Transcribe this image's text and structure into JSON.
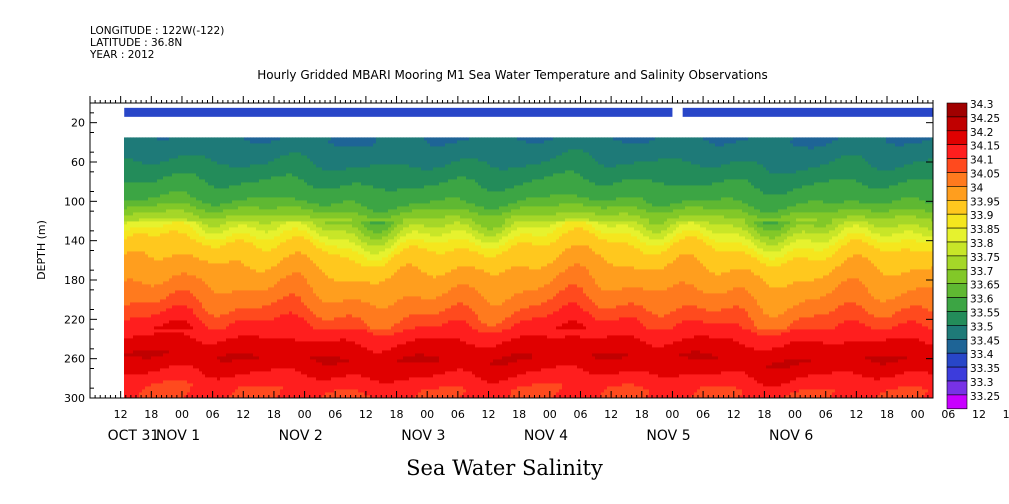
{
  "header": {
    "longitude": "LONGITUDE : 122W(-122)",
    "latitude": "LATITUDE : 36.8N",
    "year": "YEAR : 2012"
  },
  "chart_data": {
    "type": "heatmap",
    "title": "Hourly Gridded MBARI Mooring M1 Sea Water Temperature and Salinity Observations",
    "bottom_title": "Sea Water Salinity",
    "ylabel": "DEPTH (m)",
    "ylim": [
      300,
      0
    ],
    "y_ticks": [
      "20",
      "60",
      "100",
      "140",
      "180",
      "220",
      "260",
      "300"
    ],
    "y_tick_values": [
      20,
      60,
      100,
      140,
      180,
      220,
      260,
      300
    ],
    "x_hour_labels": [
      "12",
      "18",
      "00",
      "06",
      "12",
      "18",
      "00",
      "06",
      "12",
      "18",
      "00",
      "06",
      "12",
      "18",
      "00",
      "06",
      "12",
      "18",
      "00",
      "06",
      "12",
      "18",
      "00",
      "06",
      "12",
      "18",
      "00",
      "06",
      "12",
      "18",
      "00"
    ],
    "x_day_labels": [
      "OCT 31",
      "NOV  1",
      "NOV  2",
      "NOV  3",
      "NOV  4",
      "NOV  5",
      "NOV  6"
    ],
    "x_range_hours": [
      "2012-10-31 06:00",
      "2012-11-07 03:00"
    ],
    "colorbar_levels": [
      "34.3",
      "34.25",
      "34.2",
      "34.15",
      "34.1",
      "34.05",
      "34",
      "33.95",
      "33.9",
      "33.85",
      "33.8",
      "33.75",
      "33.7",
      "33.65",
      "33.6",
      "33.55",
      "33.5",
      "33.45",
      "33.4",
      "33.35",
      "33.3",
      "33.25"
    ],
    "colorbar_colors": [
      "#a00000",
      "#c00000",
      "#e00000",
      "#ff1e1e",
      "#ff4a1e",
      "#ff7a1e",
      "#ff9e1e",
      "#ffc81e",
      "#f5e61e",
      "#e6f22e",
      "#c8e628",
      "#a5d728",
      "#82c828",
      "#5fb832",
      "#3ca544",
      "#238c5a",
      "#1e7a78",
      "#1e6496",
      "#2846c8",
      "#3c3cdc",
      "#7832e6",
      "#c800ff"
    ],
    "surface_sensor": {
      "depth_m": 10,
      "gap_hours": [
        "2012-11-05 00:00",
        "2012-11-05 02:00"
      ],
      "value_class": "33.4"
    },
    "depth_profile": [
      {
        "depth_m": 35,
        "salinity": 33.5
      },
      {
        "depth_m": 60,
        "salinity": 33.55
      },
      {
        "depth_m": 80,
        "salinity": 33.6
      },
      {
        "depth_m": 100,
        "salinity": 33.65
      },
      {
        "depth_m": 115,
        "salinity": 33.75
      },
      {
        "depth_m": 130,
        "salinity": 33.85
      },
      {
        "depth_m": 145,
        "salinity": 33.95
      },
      {
        "depth_m": 165,
        "salinity": 34.0
      },
      {
        "depth_m": 190,
        "salinity": 34.05
      },
      {
        "depth_m": 210,
        "salinity": 34.1
      },
      {
        "depth_m": 225,
        "salinity": 34.15
      },
      {
        "depth_m": 240,
        "salinity": 34.2
      },
      {
        "depth_m": 258,
        "salinity": 34.25
      },
      {
        "depth_m": 275,
        "salinity": 34.2
      },
      {
        "depth_m": 290,
        "salinity": 34.15
      },
      {
        "depth_m": 300,
        "salinity": 34.15
      }
    ]
  }
}
